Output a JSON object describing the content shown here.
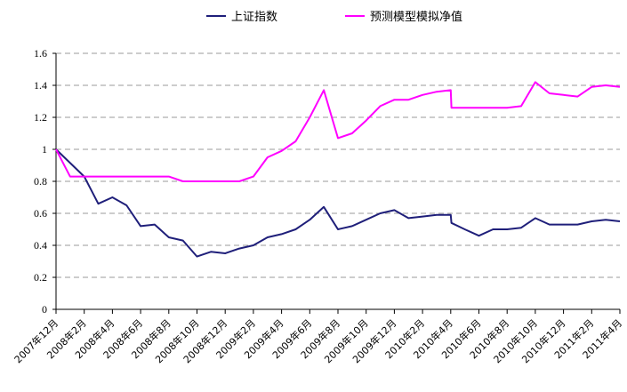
{
  "chart_data": {
    "type": "line",
    "ylim": [
      0,
      1.6
    ],
    "yticks": [
      "0",
      "0.2",
      "0.4",
      "0.6",
      "0.8",
      "1",
      "1.2",
      "1.4",
      "1.6"
    ],
    "xtick_labels": [
      "2007年12月",
      "2008年2月",
      "2008年4月",
      "2008年6月",
      "2008年8月",
      "2008年10月",
      "2008年12月",
      "2009年2月",
      "2009年4月",
      "2009年6月",
      "2009年8月",
      "2009年10月",
      "2009年12月",
      "2010年2月",
      "2010年4月",
      "2010年6月",
      "2010年8月",
      "2010年10月",
      "2010年12月",
      "2011年2月",
      "2011年4月"
    ],
    "x_range": [
      0,
      40
    ],
    "grid": "horizontal dashed",
    "legend_position": "top",
    "series": [
      {
        "name": "上证指数",
        "color": "#1f1f7a",
        "x": [
          0,
          2,
          3,
          4,
          5,
          6,
          7,
          8,
          9,
          10,
          11,
          12,
          13,
          14,
          15,
          16,
          17,
          18,
          19,
          20,
          21,
          22,
          23,
          24,
          25,
          26,
          27,
          28,
          28.05,
          29,
          30,
          31,
          32,
          33,
          34,
          35,
          36,
          37,
          38,
          39,
          40
        ],
        "values": [
          1.0,
          0.83,
          0.66,
          0.7,
          0.65,
          0.52,
          0.53,
          0.45,
          0.43,
          0.33,
          0.36,
          0.35,
          0.38,
          0.4,
          0.45,
          0.47,
          0.5,
          0.56,
          0.64,
          0.5,
          0.52,
          0.56,
          0.6,
          0.62,
          0.57,
          0.58,
          0.59,
          0.59,
          0.54,
          0.5,
          0.46,
          0.5,
          0.5,
          0.51,
          0.57,
          0.53,
          0.53,
          0.53,
          0.55,
          0.56,
          0.55
        ]
      },
      {
        "name": "预测模型模拟净值",
        "color": "#ff00ff",
        "x": [
          0,
          1,
          2,
          3,
          4,
          5,
          6,
          7,
          8,
          9,
          10,
          11,
          12,
          13,
          14,
          15,
          16,
          17,
          18,
          19,
          20,
          21,
          22,
          23,
          24,
          25,
          26,
          27,
          28,
          28.05,
          29,
          30,
          31,
          32,
          33,
          34,
          35,
          36,
          37,
          38,
          39,
          40
        ],
        "values": [
          1.0,
          0.83,
          0.83,
          0.83,
          0.83,
          0.83,
          0.83,
          0.83,
          0.83,
          0.8,
          0.8,
          0.8,
          0.8,
          0.8,
          0.83,
          0.95,
          0.99,
          1.05,
          1.2,
          1.37,
          1.07,
          1.1,
          1.18,
          1.27,
          1.31,
          1.31,
          1.34,
          1.36,
          1.37,
          1.26,
          1.26,
          1.26,
          1.26,
          1.26,
          1.27,
          1.42,
          1.35,
          1.34,
          1.33,
          1.39,
          1.4,
          1.39
        ]
      }
    ]
  },
  "legend": {
    "items": [
      {
        "label": "上证指数",
        "color": "#1f1f7a"
      },
      {
        "label": "预测模型模拟净值",
        "color": "#ff00ff"
      }
    ]
  }
}
